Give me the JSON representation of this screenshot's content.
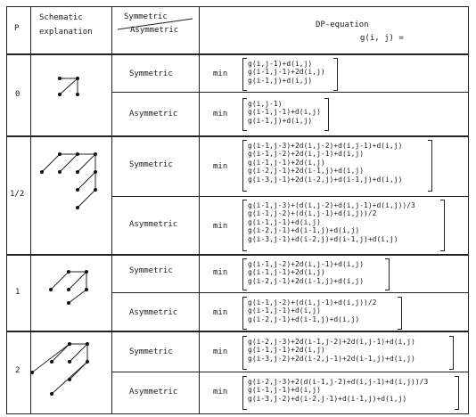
{
  "header": {
    "p_label": "P",
    "schematic_line1": "Schematic",
    "schematic_line2": "explanation",
    "sym_label": "Symmetric",
    "asym_label": "Asymmetric",
    "dp_line1": "DP-equation",
    "dp_line2": "g(i, j) ="
  },
  "rows": [
    {
      "p": "0",
      "sym": {
        "label": "Symmetric",
        "op": "min",
        "lines": [
          "g(i,j-1)+d(i,j)",
          "g(i-1,j-1)+2d(i,j)",
          "g(i-1,j)+d(i,j)"
        ]
      },
      "asym": {
        "label": "Asymmetric",
        "op": "min",
        "lines": [
          "g(i,j-1)",
          "g(i-1,j-1)+d(i,j)",
          "g(i-1,j)+d(i,j)"
        ]
      }
    },
    {
      "p": "1/2",
      "sym": {
        "label": "Symmetric",
        "op": "min",
        "lines": [
          "g(i-1,j-3)+2d(i,j-2)+d(i,j-1)+d(i,j)",
          "g(i-1,j-2)+2d(i,j-1)+d(i,j)",
          "g(i-1,j-1)+2d(i,j)",
          "g(i-2,j-1)+2d(i-1,j)+d(i,j)",
          "g(i-3,j-1)+2d(i-2,j)+d(i-1,j)+d(i,j)"
        ]
      },
      "asym": {
        "label": "Asymmetric",
        "op": "min",
        "lines": [
          "g(i-1,j-3)+(d(i,j-2)+d(i,j-1)+d(i,j))/3",
          "g(i-1,j-2)+(d(i,j-1)+d(i,j))/2",
          "g(i-1,j-1)+d(i,j)",
          "g(i-2,j-1)+d(i-1,j)+d(i,j)",
          "g(i-3,j-1)+d(i-2,j)+d(i-1,j)+d(i,j)"
        ]
      }
    },
    {
      "p": "1",
      "sym": {
        "label": "Symmetric",
        "op": "min",
        "lines": [
          "g(i-1,j-2)+2d(i,j-1)+d(i,j)",
          "g(i-1,j-1)+2d(i,j)",
          "g(i-2,j-1)+2d(i-1,j)+d(i,j)"
        ]
      },
      "asym": {
        "label": "Asymmetric",
        "op": "min",
        "lines": [
          "g(i-1,j-2)+(d(i,j-1)+d(i,j))/2",
          "g(i-1,j-1)+d(i,j)",
          "g(i-2,j-1)+d(i-1,j)+d(i,j)"
        ]
      }
    },
    {
      "p": "2",
      "sym": {
        "label": "Symmetric",
        "op": "min",
        "lines": [
          "g(i-2,j-3)+2d(i-1,j-2)+2d(i,j-1)+d(i,j)",
          "g(i-1,j-1)+2d(i,j)",
          "g(i-3,j-2)+2d(i-2,j-1)+2d(i-1,j)+d(i,j)"
        ]
      },
      "asym": {
        "label": "Asymmetric",
        "op": "min",
        "lines": [
          "g(i-2,j-3)+2(d(i-1,j-2)+d(i,j-1)+d(i,j))/3",
          "g(i-1,j-1)+d(i,j)",
          "g(i-3,j-2)+d(i-2,j-1)+d(i-1,j)+d(i,j)"
        ]
      }
    }
  ]
}
